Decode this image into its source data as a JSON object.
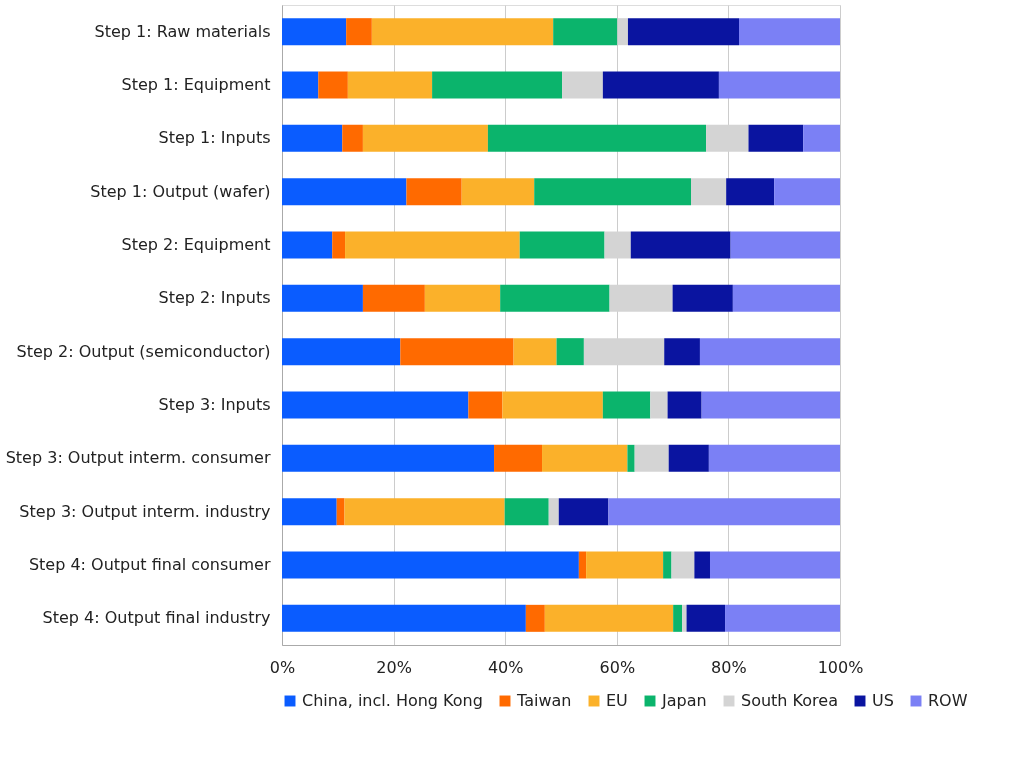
{
  "chart_data": {
    "type": "bar",
    "orientation": "horizontal",
    "stacked": true,
    "categories": [
      "Step 1: Raw materials",
      "Step 1: Equipment",
      "Step 1: Inputs",
      "Step 1: Output (wafer)",
      "Step 2: Equipment",
      "Step 2: Inputs",
      "Step 2: Output (semiconductor)",
      "Step 3: Inputs",
      "Step 3: Output interm. consumer",
      "Step 3: Output interm. industry",
      "Step 4: Output final consumer",
      "Step 4: Output final industry"
    ],
    "series": [
      {
        "name": "China, incl. Hong Kong",
        "color": "#0a5cff",
        "values": [
          11.5,
          6.5,
          10.8,
          22.3,
          9.0,
          14.5,
          21.2,
          33.4,
          38.0,
          9.8,
          53.2,
          43.7
        ]
      },
      {
        "name": "Taiwan",
        "color": "#ff6a00",
        "values": [
          4.6,
          5.3,
          3.7,
          9.9,
          2.3,
          11.1,
          20.3,
          6.1,
          8.6,
          1.4,
          1.3,
          3.4
        ]
      },
      {
        "name": "EU",
        "color": "#fbb12a",
        "values": [
          32.5,
          15.1,
          22.4,
          13.0,
          31.3,
          13.5,
          7.7,
          18.0,
          15.3,
          28.7,
          13.8,
          23.0
        ]
      },
      {
        "name": "Japan",
        "color": "#0bb46c",
        "values": [
          11.5,
          23.3,
          39.1,
          28.1,
          15.2,
          19.6,
          4.9,
          8.5,
          1.3,
          7.9,
          1.5,
          1.6
        ]
      },
      {
        "name": "South Korea",
        "color": "#d4d4d4",
        "values": [
          1.9,
          7.3,
          7.6,
          6.3,
          4.7,
          11.3,
          14.4,
          3.1,
          6.1,
          1.8,
          4.1,
          0.8
        ]
      },
      {
        "name": "US",
        "color": "#0a14a0",
        "values": [
          19.9,
          20.8,
          9.8,
          8.6,
          17.9,
          10.8,
          6.4,
          6.1,
          7.2,
          8.9,
          2.8,
          6.9
        ]
      },
      {
        "name": "ROW",
        "color": "#7b80f5",
        "values": [
          18.1,
          21.7,
          6.6,
          11.8,
          19.6,
          19.2,
          25.1,
          24.8,
          23.5,
          41.5,
          23.3,
          20.6
        ]
      }
    ],
    "xlim": [
      0,
      100
    ],
    "xticks": [
      {
        "value": 0,
        "label": "0%"
      },
      {
        "value": 20,
        "label": "20%"
      },
      {
        "value": 40,
        "label": "40%"
      },
      {
        "value": 60,
        "label": "60%"
      },
      {
        "value": 80,
        "label": "80%"
      },
      {
        "value": 100,
        "label": "100%"
      }
    ],
    "grid": "x",
    "legend": "bottom"
  }
}
